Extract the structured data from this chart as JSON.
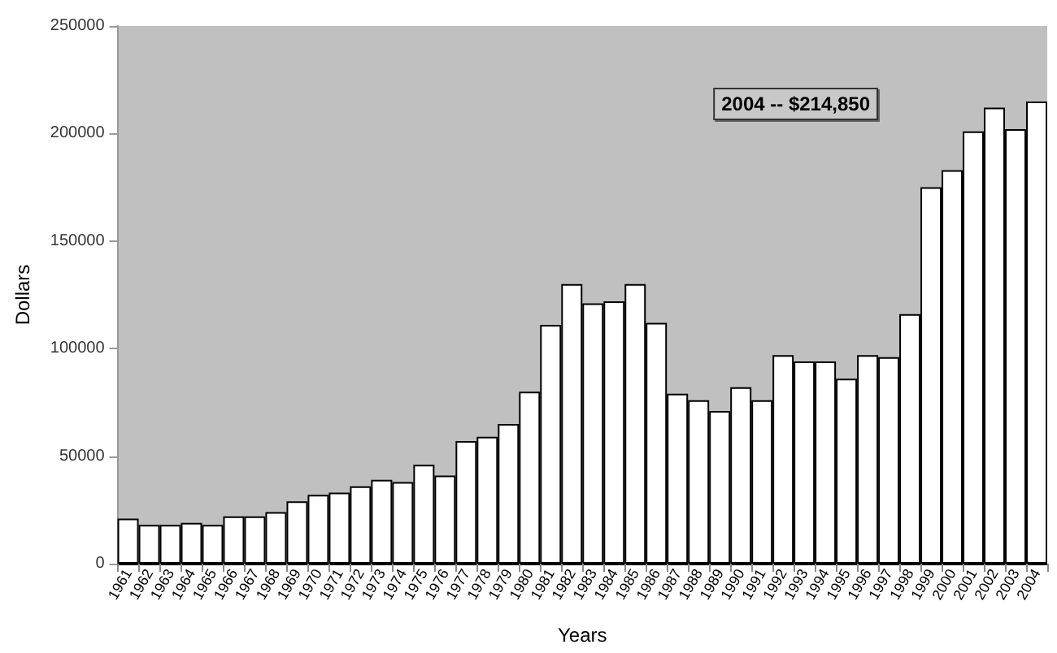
{
  "chart_data": {
    "type": "bar",
    "xlabel": "Years",
    "ylabel": "Dollars",
    "categories": [
      "1961",
      "1962",
      "1963",
      "1964",
      "1965",
      "1966",
      "1967",
      "1968",
      "1969",
      "1970",
      "1971",
      "1972",
      "1973",
      "1974",
      "1975",
      "1976",
      "1977",
      "1978",
      "1979",
      "1980",
      "1981",
      "1982",
      "1983",
      "1984",
      "1985",
      "1986",
      "1987",
      "1988",
      "1989",
      "1990",
      "1991",
      "1992",
      "1993",
      "1994",
      "1995",
      "1996",
      "1997",
      "1998",
      "1999",
      "2000",
      "2001",
      "2002",
      "2003",
      "2004"
    ],
    "values": [
      21000,
      18000,
      18000,
      19000,
      18000,
      22000,
      22000,
      24000,
      29000,
      32000,
      33000,
      36000,
      39000,
      38000,
      46000,
      41000,
      57000,
      59000,
      65000,
      80000,
      111000,
      130000,
      121000,
      122000,
      130000,
      112000,
      79000,
      76000,
      71000,
      82000,
      76000,
      97000,
      94000,
      94000,
      86000,
      97000,
      96000,
      116000,
      175000,
      183000,
      201000,
      212000,
      202000,
      214850
    ],
    "color": "#ffffff",
    "ylim": [
      0,
      250000
    ],
    "yticks": [
      0,
      50000,
      100000,
      150000,
      200000,
      250000
    ],
    "annotations": [
      "2004 -- $214,850"
    ]
  }
}
